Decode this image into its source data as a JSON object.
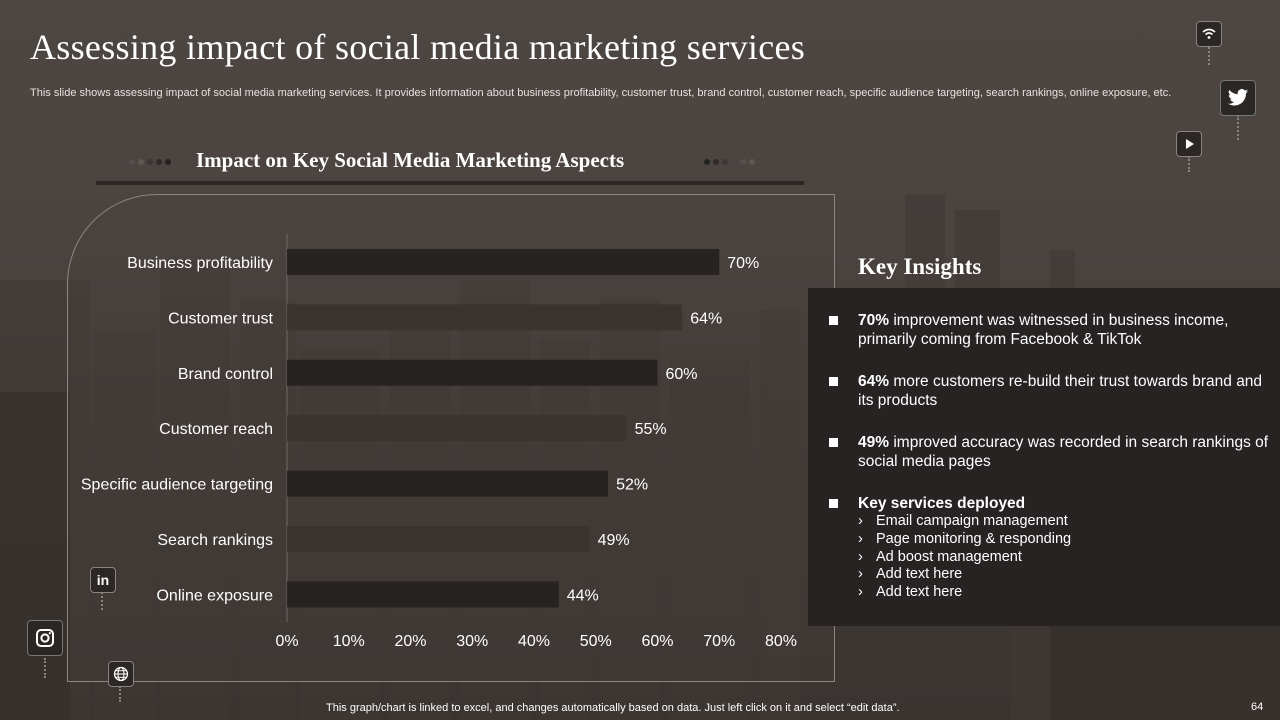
{
  "title": "Assessing impact of social media marketing services",
  "subtitle": "This slide shows assessing impact of social media marketing services. It provides information about business profitability, customer trust, brand control, customer reach, specific audience targeting, search rankings, online exposure, etc.",
  "chart_heading": "Impact on Key Social Media Marketing Aspects",
  "chart_data": {
    "type": "bar",
    "orientation": "horizontal",
    "categories": [
      "Business profitability",
      "Customer trust",
      "Brand control",
      "Customer reach",
      "Specific audience targeting",
      "Search rankings",
      "Online exposure"
    ],
    "values": [
      70,
      64,
      60,
      55,
      52,
      49,
      44
    ],
    "value_labels": [
      "70%",
      "64%",
      "60%",
      "55%",
      "52%",
      "49%",
      "44%"
    ],
    "xlim": [
      0,
      80
    ],
    "x_ticks": [
      "0%",
      "10%",
      "20%",
      "30%",
      "40%",
      "50%",
      "60%",
      "70%",
      "80%"
    ],
    "bar_colors": [
      "#262322",
      "#3a3431"
    ],
    "xlabel": "",
    "ylabel": "",
    "grid": false,
    "legend": "none"
  },
  "insights": {
    "title": "Key Insights",
    "items": [
      {
        "highlight": "70%",
        "text": " improvement was witnessed in business income, primarily coming from Facebook & TikTok"
      },
      {
        "highlight": "64%",
        "text": " more customers re-build their trust towards brand and its products"
      },
      {
        "highlight": "49%",
        "text": " improved accuracy was recorded in search rankings of social media pages"
      }
    ],
    "services_title": "Key services deployed",
    "services": [
      "Email campaign management",
      "Page monitoring & responding",
      "Ad boost management",
      "Add text here",
      "Add text here"
    ]
  },
  "footer_note": "This graph/chart is linked to excel,  and changes automatically based on data. Just left click on it and select “edit data”.",
  "page_number": "64",
  "icons": [
    "wifi-icon",
    "twitter-icon",
    "play-icon",
    "linkedin-icon",
    "instagram-icon",
    "globe-icon"
  ]
}
